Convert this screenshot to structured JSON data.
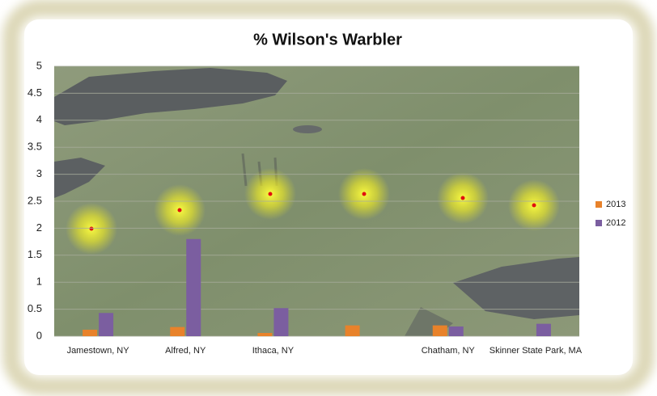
{
  "chart_data": {
    "type": "bar",
    "title": "% Wilson's Warbler",
    "categories": [
      "Jamestown, NY",
      "Alfred, NY",
      "Ithaca, NY",
      null,
      "Chatham, NY",
      "Skinner State Park, MA"
    ],
    "series": [
      {
        "name": "2013",
        "color": "#e8822a",
        "values": [
          0.12,
          0.17,
          0.06,
          0.2,
          0.2,
          0
        ]
      },
      {
        "name": "2012",
        "color": "#7b5ea0",
        "values": [
          0.43,
          1.8,
          0.52,
          0,
          0.18,
          0.23
        ]
      }
    ],
    "ylim": [
      0,
      5
    ],
    "yticks": [
      0,
      0.5,
      1,
      1.5,
      2,
      2.5,
      3,
      3.5,
      4,
      4.5,
      5
    ],
    "grid": true,
    "legend": "right"
  }
}
